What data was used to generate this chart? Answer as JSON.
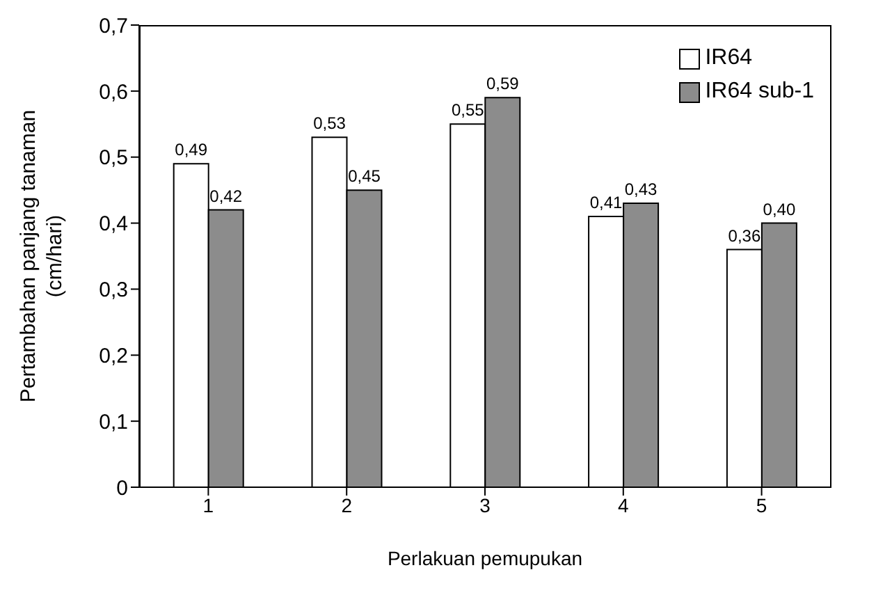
{
  "chart_data": {
    "type": "bar",
    "xlabel": "Perlakuan  pemupukan",
    "ylabel": "Pertambahan panjang tanaman\n(cm/hari)",
    "categories": [
      "1",
      "2",
      "3",
      "4",
      "5"
    ],
    "series": [
      {
        "name": "IR64",
        "color": "#ffffff",
        "values": [
          0.49,
          0.53,
          0.55,
          0.41,
          0.36
        ],
        "value_labels": [
          "0,49",
          "0,53",
          "0,55",
          "0,41",
          "0,36"
        ]
      },
      {
        "name": "IR64 sub-1",
        "color": "#8c8c8c",
        "values": [
          0.42,
          0.45,
          0.59,
          0.43,
          0.4
        ],
        "value_labels": [
          "0,42",
          "0,45",
          "0,59",
          "0,43",
          "0,40"
        ]
      }
    ],
    "ylim": [
      0,
      0.7
    ],
    "yticks": [
      0,
      {
        "value": 0.1,
        "label": "0,1"
      },
      {
        "value": 0.2,
        "label": "0,2"
      },
      {
        "value": 0.3,
        "label": "0,3"
      },
      {
        "value": 0.4,
        "label": "0,4"
      },
      {
        "value": 0.5,
        "label": "0,5"
      },
      {
        "value": 0.6,
        "label": "0,6"
      },
      {
        "value": 0.7,
        "label": "0,7"
      }
    ],
    "grid": false,
    "legend": "top right"
  }
}
